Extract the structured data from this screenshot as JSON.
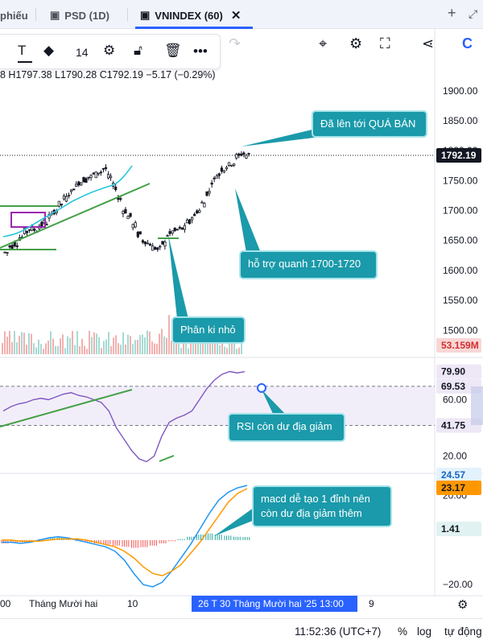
{
  "tabs": [
    {
      "label": "phiếu"
    },
    {
      "label": "PSD (1D)"
    },
    {
      "label": "VNINDEX (60)"
    }
  ],
  "toolbar": {
    "font_size": "14"
  },
  "ohlc_text": "8  H1797.38  L1790.28  C1792.19  −5.17 (−0.29%)",
  "colors": {
    "up": "#26a69a",
    "down": "#ef5350",
    "candle": "#131722",
    "accent": "#2962ff",
    "teal_callout": "#1a9aaa",
    "trendline": "#43a047",
    "rsi_line": "#7e57c2",
    "macd_line": "#2196f3",
    "signal_line": "#ff9800"
  },
  "chart_data": [
    {
      "type": "candlestick",
      "title": "VNINDEX (60)",
      "ylim": [
        1460,
        1920
      ],
      "y_ticks": [
        "1900.00",
        "1850.00",
        "1800.00",
        "1750.00",
        "1700.00",
        "1650.00",
        "1600.00",
        "1550.00",
        "1500.00"
      ],
      "price_path": [
        1630,
        1640,
        1645,
        1655,
        1665,
        1670,
        1668,
        1675,
        1680,
        1690,
        1700,
        1710,
        1720,
        1730,
        1740,
        1748,
        1752,
        1756,
        1760,
        1765,
        1770,
        1755,
        1740,
        1720,
        1700,
        1690,
        1675,
        1660,
        1650,
        1645,
        1638,
        1635,
        1645,
        1660,
        1665,
        1668,
        1670,
        1680,
        1690,
        1700,
        1712,
        1730,
        1750,
        1760,
        1770,
        1775,
        1780,
        1790,
        1795,
        1792.19
      ],
      "last_price": "1792.19",
      "volume_label": "53.159M",
      "annotations": [
        {
          "text": "Đã lên tới QUÁ BÁN"
        },
        {
          "text": "hỗ trợ quanh 1700-1720"
        },
        {
          "text": "Phân ki nhỏ"
        }
      ]
    },
    {
      "type": "line",
      "title": "RSI",
      "ylim": [
        10,
        90
      ],
      "y_ticks": [
        "60.00",
        "20.00"
      ],
      "levels": [
        69.53,
        41.75
      ],
      "level_labels": [
        "69.53",
        "41.75"
      ],
      "last_value_label": "79.90",
      "values": [
        52,
        55,
        57,
        58,
        60,
        61,
        60,
        62,
        64,
        65,
        63,
        62,
        60,
        58,
        52,
        40,
        32,
        24,
        18,
        16,
        20,
        34,
        44,
        47,
        49,
        52,
        60,
        68,
        74,
        78,
        80,
        79,
        79.9
      ],
      "annotations": [
        {
          "text": "RSI còn dư địa giảm"
        }
      ]
    },
    {
      "type": "line",
      "title": "MACD",
      "ylim": [
        -25,
        30
      ],
      "y_ticks": [
        "20.00",
        "−20.00"
      ],
      "series": [
        {
          "values": [
            -1,
            -1,
            -1.5,
            -1,
            0,
            1,
            1.5,
            1,
            0,
            -1,
            -2,
            -3,
            -5,
            -9,
            -15,
            -20,
            -21,
            -19,
            -14,
            -8,
            -2,
            5,
            12,
            18,
            21.5,
            23.5,
            24.57
          ]
        },
        {
          "values": [
            0,
            0,
            -0.5,
            -0.5,
            -0.5,
            0,
            0.5,
            0.5,
            0.5,
            0,
            -1,
            -2,
            -3,
            -5,
            -8,
            -12,
            -15,
            -16,
            -14,
            -11,
            -6,
            -1,
            5,
            11,
            17,
            21,
            23.17
          ]
        }
      ],
      "histogram": [
        -1.5,
        -1.2,
        -1,
        -0.5,
        0.5,
        1,
        1.2,
        0.6,
        -0.5,
        -1,
        -1.5,
        -2,
        -2.5,
        -3,
        -3.5,
        -3.2,
        -2.5,
        -1.5,
        -0.5,
        0.5,
        1.5,
        2.5,
        3,
        2.5,
        2,
        1.5,
        1.41
      ],
      "value_labels": [
        "24.57",
        "23.17",
        "1.41"
      ],
      "annotations": [
        {
          "text": "macd dễ tạo 1 đỉnh nên\ncòn dư địa giảm thêm"
        }
      ]
    }
  ],
  "time_axis": {
    "labels": [
      "00",
      "Tháng Mười hai",
      "10",
      "9"
    ],
    "crosshair_label": "26 T  30 Tháng Mười hai '25  13:00"
  },
  "status": {
    "time": "11:52:36 (UTC+7)",
    "percent": "%",
    "log": "log",
    "auto": "tự động"
  }
}
